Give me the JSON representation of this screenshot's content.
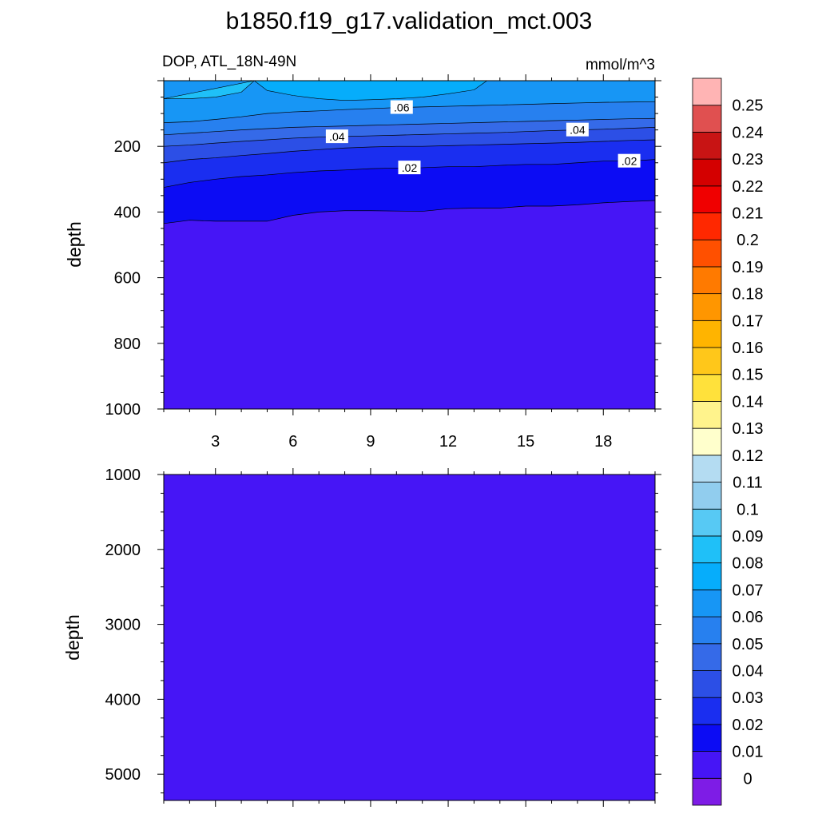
{
  "figure": {
    "title": "b1850.f19_g17.validation_mct.003"
  },
  "chart_data": [
    {
      "type": "contour",
      "panel": "upper",
      "title": "DOP, ATL_18N-49N",
      "units": "mmol/m^3",
      "ylabel": "depth",
      "xlabel": "",
      "xlim": [
        1,
        20
      ],
      "ylim": [
        1000,
        0
      ],
      "xticks": [
        3,
        6,
        9,
        12,
        15,
        18
      ],
      "xtick_labels": [
        "3",
        "6",
        "9",
        "12",
        "15",
        "18"
      ],
      "yticks": [
        200,
        400,
        600,
        800,
        1000
      ],
      "ytick_labels": [
        "200",
        "400",
        "600",
        "800",
        "1000"
      ],
      "contour_labels": [
        ".06",
        ".04",
        ".04",
        ".02",
        ".02"
      ],
      "contour_lines": [
        {
          "level": 0.01,
          "x": [
            1,
            2,
            3,
            4,
            5,
            6,
            7,
            8,
            9,
            10,
            11,
            12,
            13,
            14,
            15,
            16,
            17,
            18,
            19,
            20
          ],
          "depth": [
            435,
            425,
            428,
            428,
            428,
            410,
            400,
            396,
            396,
            397,
            398,
            390,
            388,
            388,
            382,
            382,
            378,
            372,
            368,
            365
          ]
        },
        {
          "level": 0.02,
          "x": [
            1,
            2,
            3,
            4,
            5,
            6,
            7,
            8,
            9,
            10,
            11,
            12,
            13,
            14,
            15,
            16,
            17,
            18,
            19,
            20
          ],
          "depth": [
            325,
            310,
            300,
            292,
            287,
            280,
            275,
            272,
            268,
            266,
            265,
            262,
            262,
            258,
            255,
            255,
            250,
            245,
            245,
            240
          ]
        },
        {
          "level": 0.03,
          "x": [
            1,
            2,
            3,
            4,
            5,
            6,
            7,
            8,
            9,
            10,
            11,
            12,
            13,
            14,
            15,
            16,
            17,
            18,
            19,
            20
          ],
          "depth": [
            250,
            240,
            235,
            228,
            222,
            215,
            210,
            205,
            202,
            200,
            200,
            198,
            196,
            194,
            192,
            190,
            188,
            185,
            182,
            180
          ]
        },
        {
          "level": 0.04,
          "x": [
            1,
            2,
            3,
            4,
            5,
            6,
            7,
            8,
            9,
            10,
            11,
            12,
            13,
            14,
            15,
            16,
            17,
            18,
            19,
            20
          ],
          "depth": [
            200,
            196,
            190,
            185,
            180,
            175,
            172,
            170,
            168,
            166,
            164,
            162,
            160,
            158,
            155,
            152,
            150,
            148,
            145,
            142
          ]
        },
        {
          "level": 0.05,
          "x": [
            1,
            2,
            3,
            4,
            5,
            6,
            7,
            8,
            9,
            10,
            11,
            12,
            13,
            14,
            15,
            16,
            17,
            18,
            19,
            20
          ],
          "depth": [
            165,
            160,
            155,
            150,
            146,
            142,
            140,
            138,
            136,
            134,
            132,
            130,
            128,
            126,
            124,
            122,
            120,
            118,
            116,
            115
          ]
        },
        {
          "level": 0.06,
          "x": [
            1,
            2,
            3,
            4,
            5,
            6,
            7,
            8,
            9,
            10,
            11,
            12,
            13,
            14,
            15,
            16,
            17,
            18,
            19,
            20
          ],
          "depth": [
            128,
            125,
            118,
            110,
            100,
            95,
            92,
            88,
            85,
            82,
            80,
            78,
            76,
            74,
            72,
            70,
            68,
            66,
            65,
            64
          ]
        }
      ],
      "surface_patches": [
        {
          "level": 0.07,
          "x": [
            4.5,
            5.0,
            6.0,
            7.0,
            8.0,
            9.0,
            10.0,
            11.0,
            12.0,
            13.0,
            13.5
          ],
          "depth": [
            0,
            30,
            45,
            55,
            60,
            58,
            55,
            50,
            40,
            28,
            0
          ]
        },
        {
          "level": 0.08,
          "x": [
            1.0,
            2.0,
            3.0,
            4.0,
            4.5
          ],
          "depth": [
            55,
            55,
            50,
            35,
            0
          ]
        }
      ],
      "background_level": 0.0
    },
    {
      "type": "contour",
      "panel": "lower",
      "title": "",
      "ylabel": "depth",
      "xlabel": "",
      "xlim": [
        1,
        20
      ],
      "ylim": [
        5350,
        1000
      ],
      "yticks": [
        1000,
        2000,
        3000,
        4000,
        5000
      ],
      "ytick_labels": [
        "1000",
        "2000",
        "3000",
        "4000",
        "5000"
      ],
      "background_level": 0.0
    }
  ],
  "colorbar": {
    "labels": [
      "0",
      "0.01",
      "0.02",
      "0.03",
      "0.04",
      "0.05",
      "0.06",
      "0.07",
      "0.08",
      "0.09",
      "0.1",
      "0.11",
      "0.12",
      "0.13",
      "0.14",
      "0.15",
      "0.16",
      "0.17",
      "0.18",
      "0.19",
      "0.2",
      "0.21",
      "0.22",
      "0.23",
      "0.24",
      "0.25"
    ],
    "colors": [
      "#7e1ce6",
      "#4615f6",
      "#0c0cf4",
      "#1a2ef0",
      "#2c4fe6",
      "#356ae8",
      "#2780ef",
      "#1796f5",
      "#06adfb",
      "#1fc0f8",
      "#57c9f4",
      "#91cdee",
      "#b4dcf2",
      "#ffffcc",
      "#fff38c",
      "#ffe13b",
      "#ffc71a",
      "#ffb400",
      "#ff9600",
      "#ff7a00",
      "#ff5000",
      "#ff2800",
      "#f00000",
      "#d40000",
      "#c81414",
      "#e05050",
      "#ffb4b4"
    ]
  }
}
